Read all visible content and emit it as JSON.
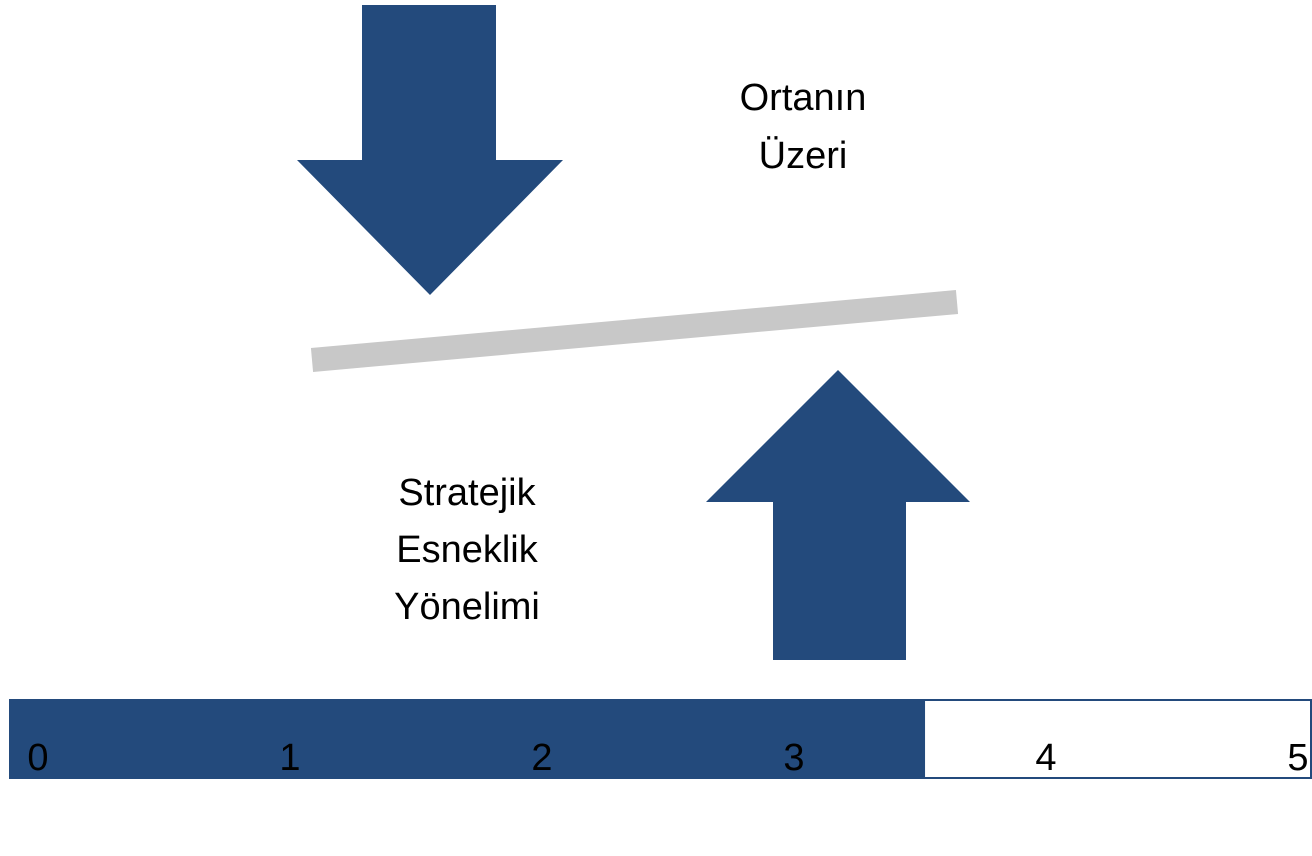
{
  "chart_data": {
    "type": "bar",
    "orientation": "horizontal",
    "categories": [
      null
    ],
    "values": [
      3.52
    ],
    "color": "#234a7c",
    "xlim": [
      0,
      5
    ],
    "xticks": [
      0,
      1,
      2,
      3,
      4,
      5
    ],
    "annotations": [
      "Ortanın Üzeri",
      "Stratejik Esneklik Yönelimi"
    ]
  }
}
